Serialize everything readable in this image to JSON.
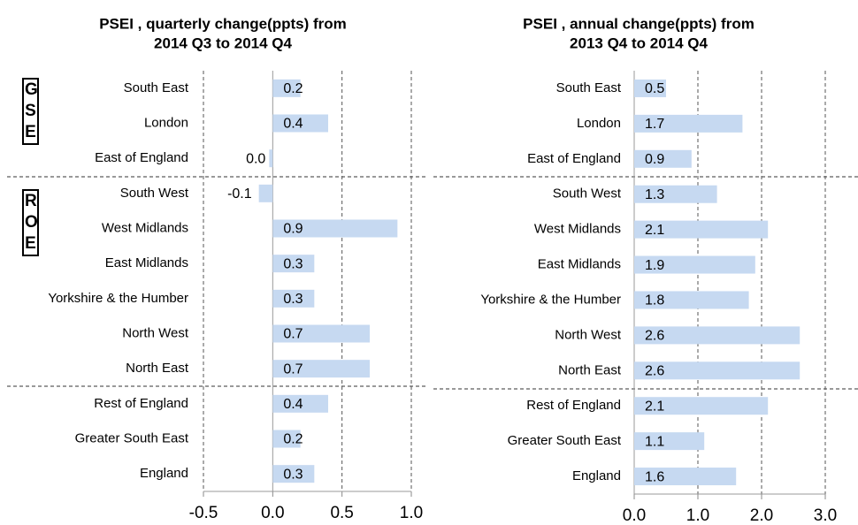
{
  "chart_data": [
    {
      "type": "bar",
      "orientation": "horizontal",
      "title": [
        "PSEI , quarterly change(ppts) from",
        "2014 Q3 to 2014 Q4"
      ],
      "group_labels": [
        "GSE",
        "ROE"
      ],
      "categories": [
        "South East",
        "London",
        "East of England",
        "South West",
        "West Midlands",
        "East Midlands",
        "Yorkshire & the Humber",
        "North West",
        "North East",
        "Rest of England",
        "Greater South East",
        "England"
      ],
      "values": [
        0.2,
        0.4,
        0,
        -0.1,
        0.9,
        0.3,
        0.3,
        0.7,
        0.7,
        0.4,
        0.2,
        0.3
      ],
      "value_labels": [
        "0.2",
        "0.4",
        "0.0",
        "-0.1",
        "0.9",
        "0.3",
        "0.3",
        "0.7",
        "0.7",
        "0.4",
        "0.2",
        "0.3"
      ],
      "color": "#c6d9f1",
      "xlim": [
        -0.5,
        1.0
      ],
      "xticks": [
        -0.5,
        {
          "value": 0,
          "label": "0.0"
        },
        0.5,
        {
          "value": 1,
          "label": "1.0"
        }
      ],
      "grid": true
    },
    {
      "type": "bar",
      "orientation": "horizontal",
      "title": [
        "PSEI , annual change(ppts) from",
        "2013 Q4 to 2014 Q4"
      ],
      "categories": [
        "South East",
        "London",
        "East of England",
        "South West",
        "West Midlands",
        "East Midlands",
        "Yorkshire & the Humber",
        "North West",
        "North East",
        "Rest of England",
        "Greater South East",
        "England"
      ],
      "values": [
        0.5,
        1.7,
        0.9,
        1.3,
        2.1,
        1.9,
        1.8,
        2.6,
        2.6,
        2.1,
        1.1,
        1.6
      ],
      "color": "#c6d9f1",
      "xlim": [
        0,
        3.0
      ],
      "xticks": [
        {
          "value": 0,
          "label": "0.0"
        },
        {
          "value": 1,
          "label": "1.0"
        },
        {
          "value": 2,
          "label": "2.0"
        },
        {
          "value": 3,
          "label": "3.0"
        }
      ],
      "grid": true
    }
  ]
}
